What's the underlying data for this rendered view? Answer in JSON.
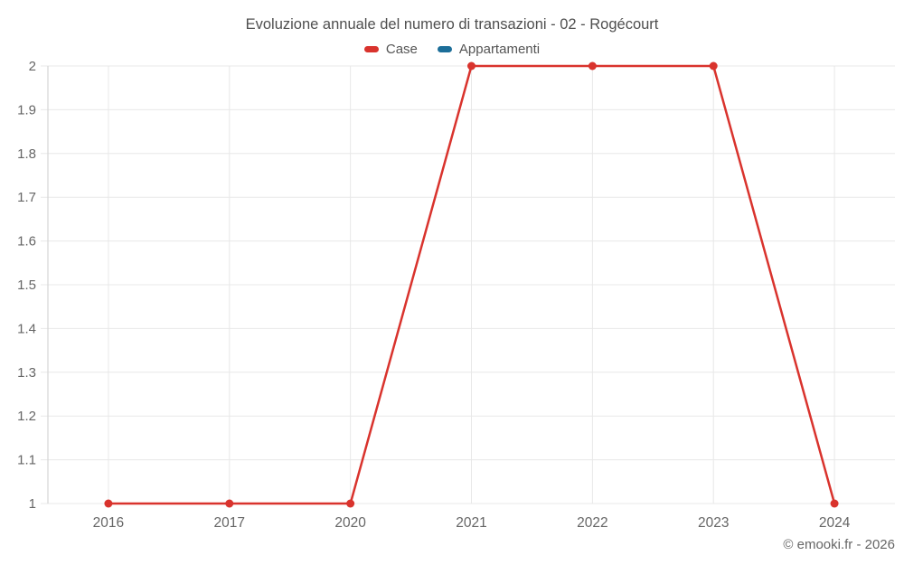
{
  "title": "Evoluzione annuale del numero di transazioni - 02 - Rogécourt",
  "copyright": "© emooki.fr - 2026",
  "colors": {
    "case": "#d9332d",
    "appartamenti": "#1c6e99",
    "grid": "#e8e8e8",
    "axis_line": "#d6d6d6",
    "axis_text": "#666666",
    "title_text": "#4f4f4f",
    "legend_text": "#555555"
  },
  "chart_data": {
    "type": "line",
    "title": "Evoluzione annuale del numero di transazioni - 02 - Rogécourt",
    "categories": [
      "2016",
      "2017",
      "2020",
      "2021",
      "2022",
      "2023",
      "2024"
    ],
    "series": [
      {
        "name": "Case",
        "color_key": "case",
        "values": [
          1,
          1,
          1,
          2,
          2,
          2,
          1
        ]
      },
      {
        "name": "Appartamenti",
        "color_key": "appartamenti",
        "values": []
      }
    ],
    "xlabel": "",
    "ylabel": "",
    "ylim": [
      1,
      2
    ],
    "y_ticks": [
      1,
      1.1,
      1.2,
      1.3,
      1.4,
      1.5,
      1.6,
      1.7,
      1.8,
      1.9,
      2
    ],
    "y_tick_labels": [
      "1",
      "1.1",
      "1.2",
      "1.3",
      "1.4",
      "1.5",
      "1.6",
      "1.7",
      "1.8",
      "1.9",
      "2"
    ],
    "grid": true,
    "legend_position": "top"
  }
}
